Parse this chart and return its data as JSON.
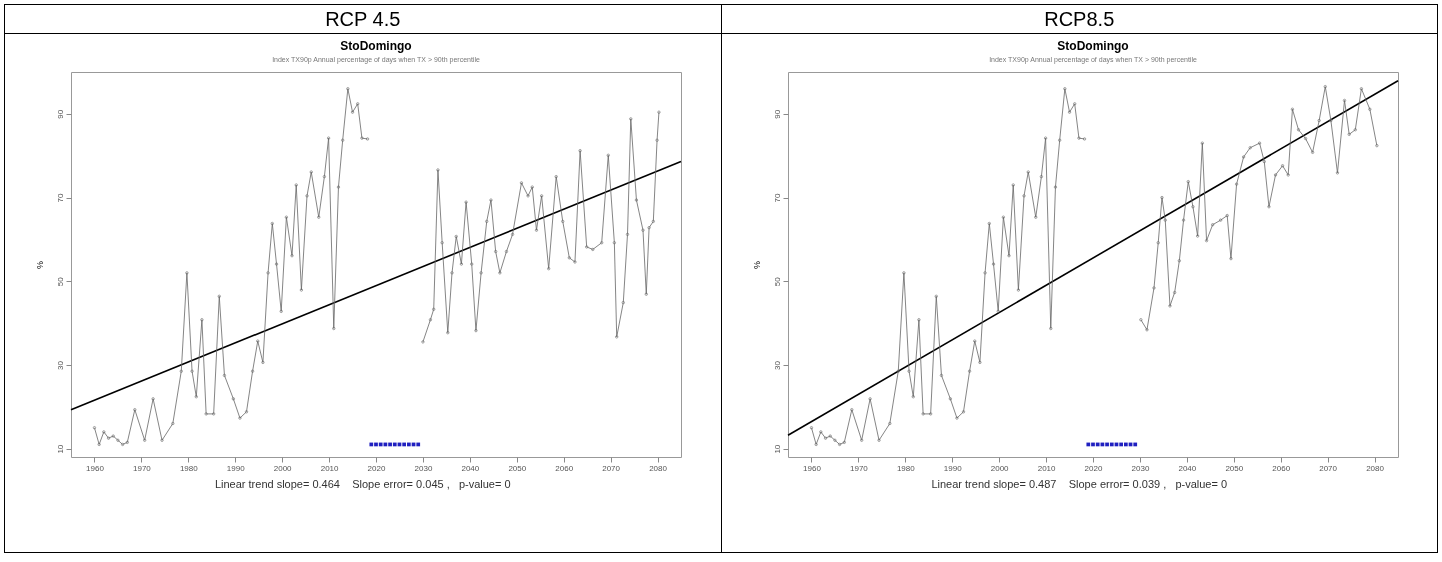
{
  "chart_data": [
    {
      "type": "line",
      "title": "RCP 4.5",
      "subtitle": "StoDomingo",
      "ylabel": "%",
      "annotations": [
        "Index TX90p  Annual percentage of days when TX > 90th percentile",
        "Linear trend slope= 0.464    Slope error= 0.045 ,   p-value= 0"
      ],
      "xlim": [
        1955,
        2085
      ],
      "ylim": [
        8,
        100
      ],
      "xticks": [
        1960,
        1970,
        1980,
        1990,
        2000,
        2010,
        2020,
        2030,
        2040,
        2050,
        2060,
        2070,
        2080
      ],
      "yticks": [
        10,
        30,
        50,
        70,
        90
      ],
      "series": [
        {
          "type": "line",
          "color": "#666666",
          "marker": "circle",
          "x": [
            1960,
            1961,
            1962,
            1963,
            1964,
            1965,
            1966,
            1967,
            1968.6,
            1970.7,
            1972.5,
            1974.4,
            1976.7,
            1978.5,
            1979.7,
            1980.8,
            1981.7,
            1982.9,
            1983.8,
            1985.4,
            1986.6,
            1987.7,
            1989.6,
            1991,
            1992.4,
            1993.7,
            1994.8,
            1995.9,
            1997,
            1997.9,
            1998.8,
            1999.8,
            2000.9,
            2002.1,
            2003,
            2004.1,
            2005.3,
            2006.2,
            2007.8,
            2009,
            2009.9,
            2011,
            2012,
            2012.9,
            2014,
            2015,
            2016.1,
            2017,
            2018.2
          ],
          "values": [
            15,
            11,
            14,
            12.5,
            13,
            12,
            11,
            11.5,
            19.3,
            12,
            21.9,
            12,
            16,
            28.5,
            52,
            28.5,
            22.4,
            40.8,
            18.3,
            18.3,
            46.4,
            27.5,
            21.9,
            17.3,
            18.8,
            28.5,
            35.7,
            30.6,
            52,
            63.8,
            54.1,
            42.8,
            65.3,
            56.1,
            73,
            47.9,
            70.4,
            76.1,
            65.3,
            75,
            84.2,
            38.7,
            72.5,
            83.7,
            96,
            90.4,
            92.4,
            84.2,
            84
          ]
        },
        {
          "type": "line",
          "color": "#666666",
          "marker": "circle",
          "x": [
            2030,
            2031.6,
            2032.3,
            2033.2,
            2034.1,
            2035.3,
            2036.2,
            2037.1,
            2038.2,
            2039.2,
            2040.4,
            2041.3,
            2042.4,
            2043.6,
            2044.5,
            2045.5,
            2046.4,
            2047.8,
            2049.1,
            2051,
            2052.4,
            2053.3,
            2054.2,
            2055.3,
            2056.8,
            2058.4,
            2059.8,
            2061.2,
            2062.4,
            2063.5,
            2064.9,
            2066.2,
            2068.1,
            2069.5,
            2070.8,
            2071.3,
            2072.7,
            2073.6,
            2074.3,
            2075.5,
            2076.9,
            2077.6,
            2078.2,
            2079.1,
            2079.9,
            2080.3
          ],
          "values": [
            35.5,
            40.8,
            43.3,
            76.6,
            59.2,
            37.7,
            52,
            60.7,
            54.1,
            68.9,
            54.1,
            38.2,
            52,
            64.3,
            69.4,
            57.1,
            52,
            57.1,
            61.2,
            73.5,
            70.4,
            72.5,
            62.2,
            70.4,
            53,
            75,
            64.3,
            55.6,
            54.6,
            81.2,
            58.2,
            57.6,
            59.2,
            80.1,
            59.2,
            36.7,
            44.9,
            61.2,
            88.8,
            69.4,
            62.2,
            46.9,
            62.8,
            64.3,
            83.7,
            90.4
          ]
        },
        {
          "type": "line",
          "color": "#000000",
          "marker": "none",
          "x": [
            1955,
            2085
          ],
          "values": [
            19.3,
            78.6
          ]
        },
        {
          "type": "scatter",
          "color": "#2020c0",
          "marker": "square",
          "x": [
            2019,
            2020,
            2021,
            2022,
            2023,
            2024,
            2025,
            2026,
            2027,
            2028,
            2029
          ],
          "values": [
            11,
            11,
            11,
            11,
            11,
            11,
            11,
            11,
            11,
            11,
            11
          ]
        }
      ]
    },
    {
      "type": "line",
      "title": "RCP8.5",
      "subtitle": "StoDomingo",
      "ylabel": "%",
      "annotations": [
        "Index TX90p  Annual percentage of days when TX > 90th percentile",
        "Linear trend slope= 0.487    Slope error= 0.039 ,   p-value= 0"
      ],
      "xlim": [
        1955,
        2085
      ],
      "ylim": [
        8,
        100
      ],
      "xticks": [
        1960,
        1970,
        1980,
        1990,
        2000,
        2010,
        2020,
        2030,
        2040,
        2050,
        2060,
        2070,
        2080
      ],
      "yticks": [
        10,
        30,
        50,
        70,
        90
      ],
      "series": [
        {
          "type": "line",
          "color": "#666666",
          "marker": "circle",
          "x": [
            1960,
            1961,
            1962,
            1963,
            1964,
            1965,
            1966,
            1967,
            1968.6,
            1970.7,
            1972.5,
            1974.4,
            1976.7,
            1978.5,
            1979.7,
            1980.8,
            1981.7,
            1982.9,
            1983.8,
            1985.4,
            1986.6,
            1987.7,
            1989.6,
            1991,
            1992.4,
            1993.7,
            1994.8,
            1995.9,
            1997,
            1997.9,
            1998.8,
            1999.8,
            2000.9,
            2002.1,
            2003,
            2004.1,
            2005.3,
            2006.2,
            2007.8,
            2009,
            2009.9,
            2011,
            2012,
            2012.9,
            2014,
            2015,
            2016.1,
            2017,
            2018.2
          ],
          "values": [
            15,
            11,
            14,
            12.5,
            13,
            12,
            11,
            11.5,
            19.3,
            12,
            21.9,
            12,
            16,
            28.5,
            52,
            28.5,
            22.4,
            40.8,
            18.3,
            18.3,
            46.4,
            27.5,
            21.9,
            17.3,
            18.8,
            28.5,
            35.7,
            30.6,
            52,
            63.8,
            54.1,
            42.8,
            65.3,
            56.1,
            73,
            47.9,
            70.4,
            76.1,
            65.3,
            75,
            84.2,
            38.7,
            72.5,
            83.7,
            96,
            90.4,
            92.4,
            84.2,
            84
          ]
        },
        {
          "type": "line",
          "color": "#666666",
          "marker": "circle",
          "x": [
            2030.2,
            2031.5,
            2033,
            2033.9,
            2034.7,
            2035.4,
            2036.4,
            2037.4,
            2038.4,
            2039.3,
            2040.3,
            2041.3,
            2042.3,
            2043.3,
            2044.2,
            2045.5,
            2047.2,
            2048.6,
            2049.4,
            2050.6,
            2052.1,
            2053.5,
            2055.5,
            2056.5,
            2057.5,
            2058.9,
            2060.4,
            2061.6,
            2062.5,
            2063.8,
            2065.3,
            2066.8,
            2068.2,
            2069.5,
            2070.7,
            2072.1,
            2073.6,
            2074.6,
            2075.9,
            2077.2,
            2079,
            2080.5
          ],
          "values": [
            40.8,
            38.4,
            48.4,
            59.2,
            70,
            64.6,
            44.1,
            47.3,
            54.9,
            64.6,
            73.8,
            67.8,
            60.8,
            83,
            59.7,
            63.5,
            64.6,
            65.7,
            55.4,
            73.2,
            79.7,
            81.9,
            83,
            78.6,
            67.8,
            75.4,
            77.6,
            75.4,
            91.1,
            86.2,
            84.1,
            80.8,
            88.4,
            96.5,
            88.4,
            75.9,
            93.2,
            85.1,
            86.2,
            96,
            91.1,
            82.4
          ]
        },
        {
          "type": "line",
          "color": "#000000",
          "marker": "none",
          "x": [
            1955,
            2085
          ],
          "values": [
            13.2,
            97.9
          ]
        },
        {
          "type": "scatter",
          "color": "#2020c0",
          "marker": "square",
          "x": [
            2019,
            2020,
            2021,
            2022,
            2023,
            2024,
            2025,
            2026,
            2027,
            2028,
            2029
          ],
          "values": [
            11,
            11,
            11,
            11,
            11,
            11,
            11,
            11,
            11,
            11,
            11
          ]
        }
      ]
    }
  ]
}
